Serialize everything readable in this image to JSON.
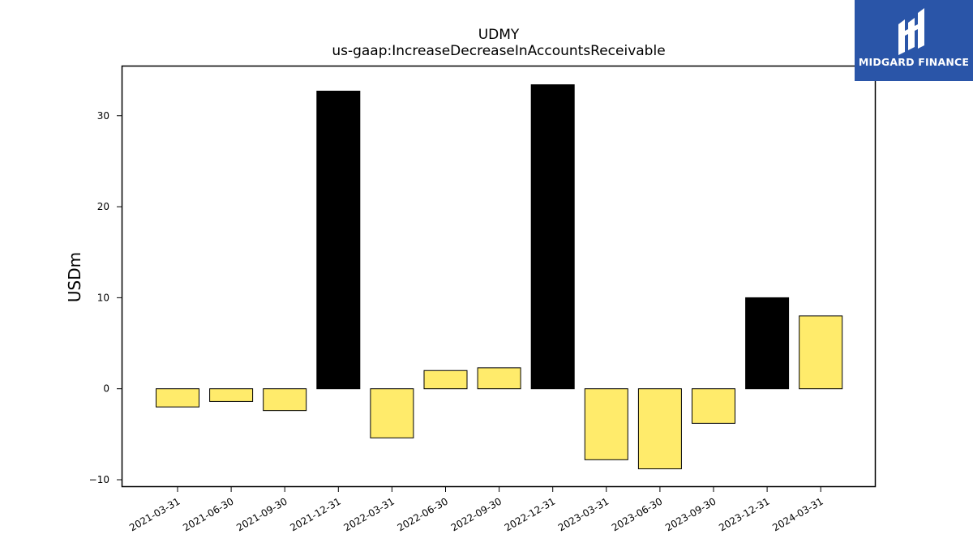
{
  "colors": {
    "positive": "#ffeb6b",
    "highlight": "#000000",
    "edge": "#000000",
    "brand": "#2a55a8"
  },
  "brand": {
    "name": "MIDGARD FINANCE",
    "icon": "midgard-logo-icon"
  },
  "chart_data": {
    "type": "bar",
    "title": "UDMY",
    "subtitle": "us-gaap:IncreaseDecreaseInAccountsReceivable",
    "xlabel": "",
    "ylabel": "USDm",
    "ylim": [
      -10.8,
      35.5
    ],
    "yticks": [
      -10,
      0,
      10,
      20,
      30
    ],
    "grid": false,
    "categories": [
      "2021-03-31",
      "2021-06-30",
      "2021-09-30",
      "2021-12-31",
      "2022-03-31",
      "2022-06-30",
      "2022-09-30",
      "2022-12-31",
      "2023-03-31",
      "2023-06-30",
      "2023-09-30",
      "2023-12-31",
      "2024-03-31"
    ],
    "values": [
      -2.0,
      -1.4,
      -2.4,
      32.7,
      -5.4,
      2.0,
      2.3,
      33.4,
      -7.8,
      -8.8,
      -3.8,
      10.0,
      8.0
    ],
    "highlighted": [
      false,
      false,
      false,
      true,
      false,
      false,
      false,
      true,
      false,
      false,
      false,
      true,
      false
    ]
  }
}
